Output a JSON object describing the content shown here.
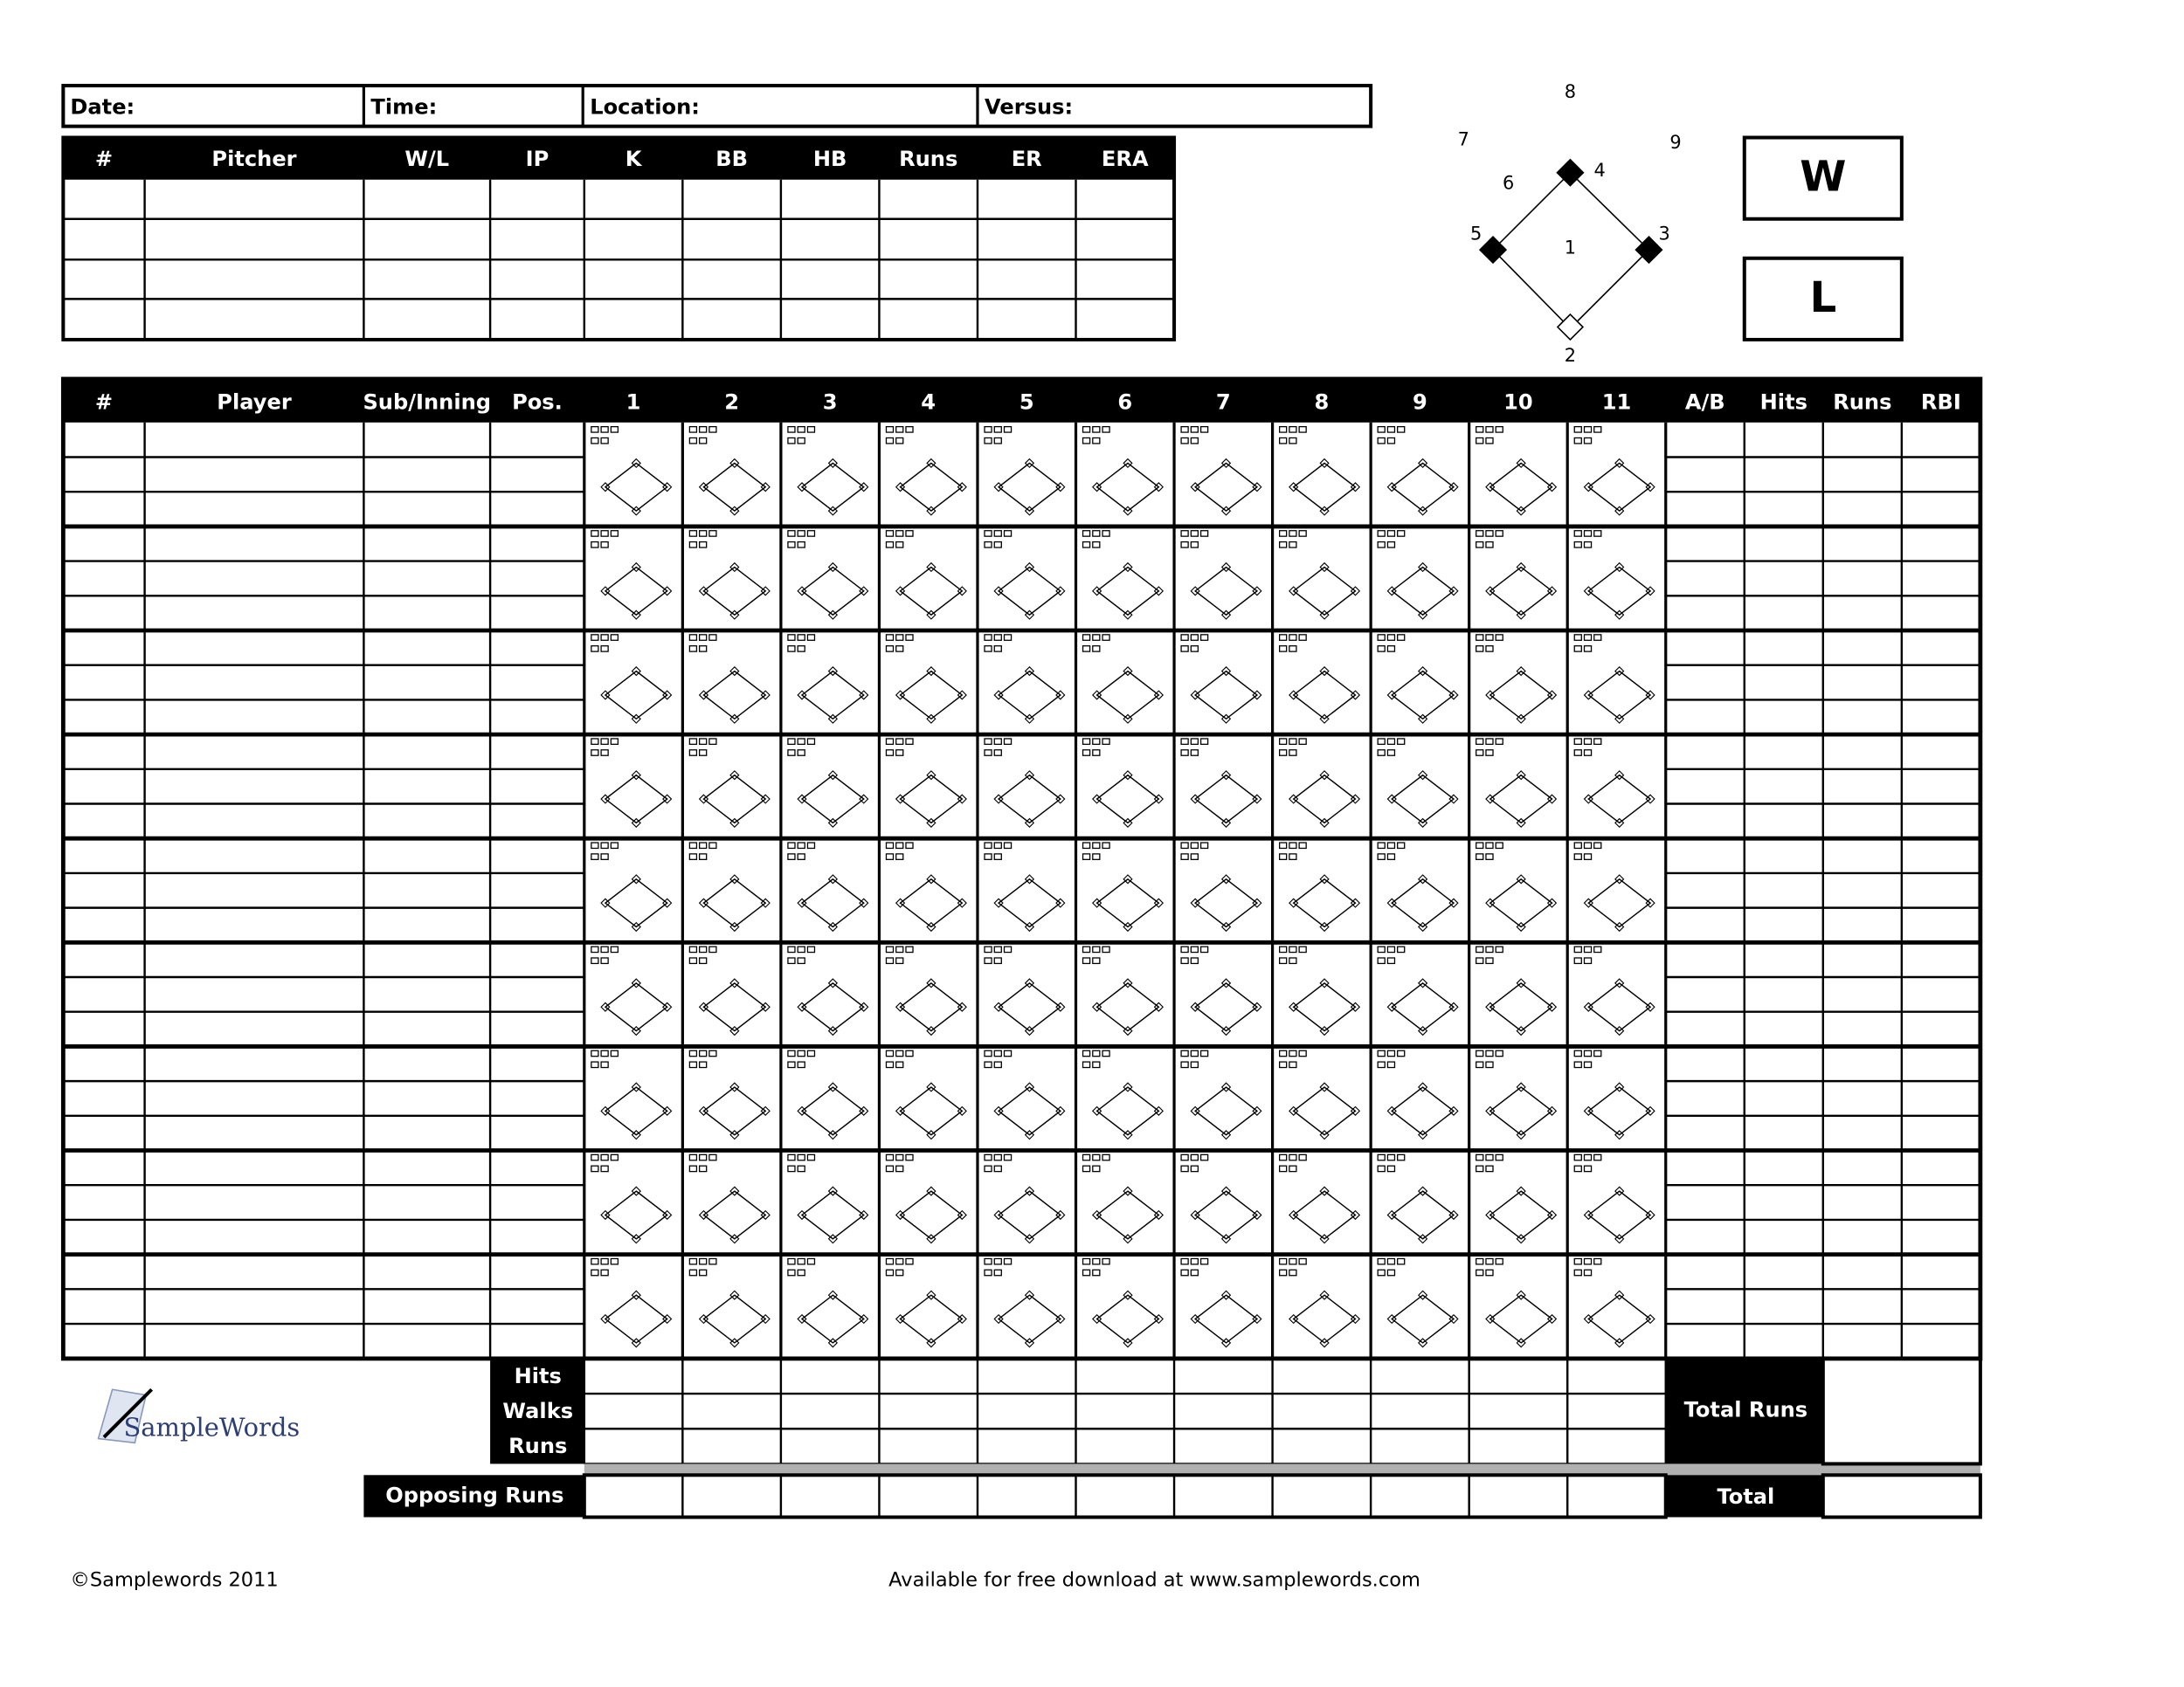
{
  "header_fields": [
    "Date:",
    "Time:",
    "Location:",
    "Versus:"
  ],
  "pitching_table": {
    "columns": [
      "#",
      "Pitcher",
      "W/L",
      "IP",
      "K",
      "BB",
      "HB",
      "Runs",
      "ER",
      "ERA"
    ]
  },
  "field_diagram": {
    "positions": [
      "1",
      "2",
      "3",
      "4",
      "5",
      "6",
      "7",
      "8",
      "9"
    ]
  },
  "result_boxes": [
    "W",
    "L"
  ],
  "batting_table": {
    "columns": [
      "#",
      "Player",
      "Sub/Inning",
      "Pos.",
      "1",
      "2",
      "3",
      "4",
      "5",
      "6",
      "7",
      "8",
      "9",
      "10",
      "11",
      "A/B",
      "Hits",
      "Runs",
      "RBI"
    ]
  },
  "totals": {
    "row_labels": [
      "Hits",
      "Walks",
      "Runs"
    ],
    "opposing_runs": "Opposing Runs",
    "total_runs": "Total Runs",
    "total": "Total"
  },
  "logo": "SampleWords",
  "footer": {
    "copyright": "©Samplewords 2011",
    "note": "Available for free download at www.samplewords.com"
  }
}
